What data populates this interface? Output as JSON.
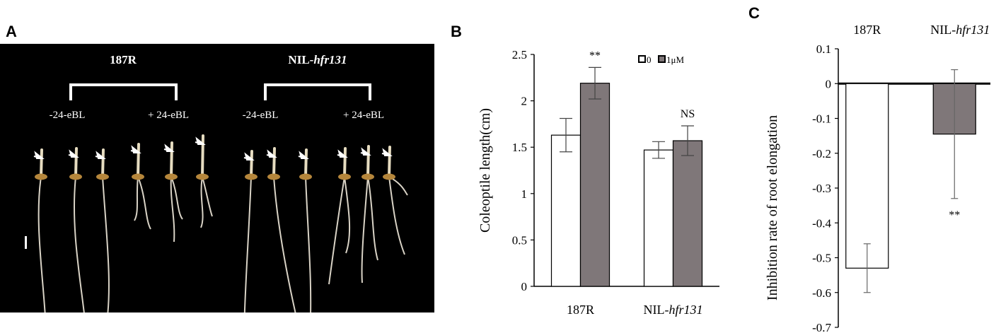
{
  "panels": {
    "a": "A",
    "b": "B",
    "c": "C"
  },
  "photo": {
    "groups": [
      {
        "name": "187R",
        "left": "-24-eBL",
        "right": "+ 24-eBL"
      },
      {
        "name_plain": "NIL-",
        "name_italic": "hfr131",
        "left": "-24-eBL",
        "right": "+ 24-eBL"
      }
    ]
  },
  "chart_data": [
    {
      "type": "bar",
      "categories": [
        "187R",
        "NIL-hfr131"
      ],
      "category_labels": [
        {
          "plain": "187R",
          "italic": ""
        },
        {
          "plain": "NIL-",
          "italic": "hfr131"
        }
      ],
      "series": [
        {
          "name": "0",
          "values": [
            1.63,
            1.47
          ],
          "errors": [
            0.18,
            0.09
          ],
          "color": "#ffffff"
        },
        {
          "name": "1μM",
          "values": [
            2.19,
            1.57
          ],
          "errors": [
            0.17,
            0.16
          ],
          "color": "#7f7779"
        }
      ],
      "annotations": [
        {
          "category": 0,
          "series": 1,
          "text": "**"
        },
        {
          "category": 1,
          "series": 1,
          "text": "NS"
        }
      ],
      "ylabel": "Coleoptile length(cm)",
      "ylim": [
        0,
        2.5
      ],
      "yticks": [
        "0",
        "0.5",
        "1",
        "1.5",
        "2",
        "2.5"
      ],
      "legend_position": "top-right"
    },
    {
      "type": "bar",
      "categories": [
        "187R",
        "NIL-hfr131"
      ],
      "category_labels": [
        {
          "plain": "187R",
          "italic": ""
        },
        {
          "plain": "NIL-",
          "italic": "hfr131"
        }
      ],
      "values": [
        -0.53,
        -0.145
      ],
      "errors": [
        0.07,
        0.185
      ],
      "colors": [
        "#ffffff",
        "#7f7779"
      ],
      "annotations": [
        {
          "category": 1,
          "text": "**"
        }
      ],
      "ylabel": "Inhibition rate of root elongation",
      "ylim": [
        -0.7,
        0.1
      ],
      "yticks": [
        "0.1",
        "0",
        "-0.1",
        "-0.2",
        "-0.3",
        "-0.4",
        "-0.5",
        "-0.6",
        "-0.7"
      ]
    }
  ]
}
